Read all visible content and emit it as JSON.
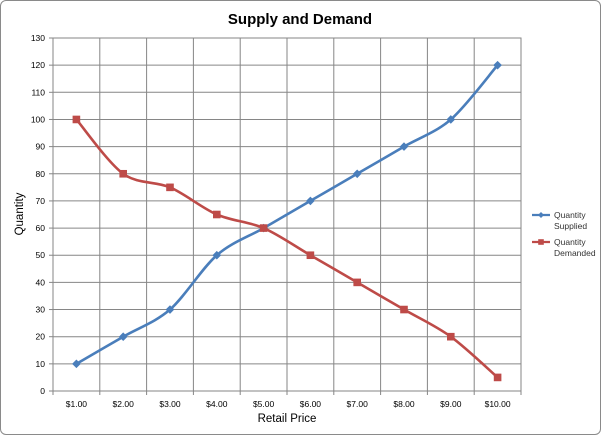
{
  "chart_data": {
    "type": "line",
    "title": "Supply and Demand",
    "xlabel": "Retail Price",
    "ylabel": "Quantity",
    "categories": [
      "$1.00",
      "$2.00",
      "$3.00",
      "$4.00",
      "$5.00",
      "$6.00",
      "$7.00",
      "$8.00",
      "$9.00",
      "$10.00"
    ],
    "ylim": [
      0,
      130
    ],
    "yticks": [
      0,
      10,
      20,
      30,
      40,
      50,
      60,
      70,
      80,
      90,
      100,
      110,
      120,
      130
    ],
    "grid": true,
    "legend_position": "right",
    "series": [
      {
        "name": "Quantity Supplied",
        "name_lines": [
          "Quantity",
          "Supplied"
        ],
        "color": "#4a7ebb",
        "marker": "diamond",
        "values": [
          10,
          20,
          30,
          50,
          60,
          70,
          80,
          90,
          100,
          120
        ]
      },
      {
        "name": "Quantity Demanded",
        "name_lines": [
          "Quantity",
          "Demanded"
        ],
        "color": "#be4b48",
        "marker": "square",
        "values": [
          100,
          80,
          75,
          65,
          60,
          50,
          40,
          30,
          20,
          5
        ]
      }
    ]
  }
}
